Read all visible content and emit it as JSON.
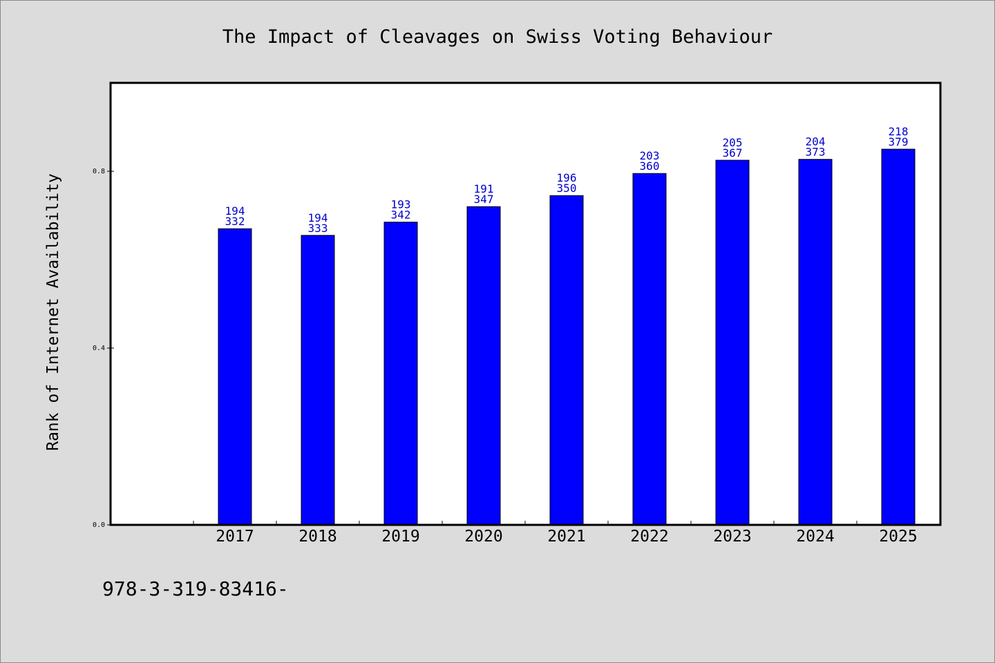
{
  "chart_data": {
    "type": "bar",
    "title": "The Impact of Cleavages on Swiss Voting Behaviour",
    "xlabel": "",
    "ylabel": "Rank of Internet Availability",
    "categories": [
      "2017",
      "2018",
      "2019",
      "2020",
      "2021",
      "2022",
      "2023",
      "2024",
      "2025"
    ],
    "values": [
      0.67,
      0.655,
      0.685,
      0.72,
      0.745,
      0.795,
      0.825,
      0.827,
      0.85
    ],
    "labels_top": [
      "194",
      "194",
      "193",
      "191",
      "196",
      "203",
      "205",
      "204",
      "218"
    ],
    "labels_bottom": [
      "332",
      "333",
      "342",
      "347",
      "350",
      "360",
      "367",
      "373",
      "379"
    ],
    "y_ticks": [
      "0.0",
      "0.4",
      "0.8"
    ],
    "y_tick_values": [
      0.0,
      0.4,
      0.8
    ],
    "ylim": [
      0,
      1.0
    ],
    "grid": false,
    "legend": "none",
    "bar_color": "#0000ff",
    "label_color": "#0000cc"
  },
  "footer_text": "978-3-319-83416-"
}
